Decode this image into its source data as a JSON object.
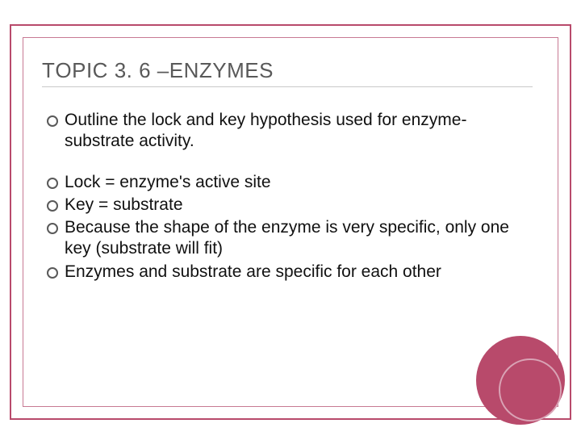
{
  "slide": {
    "title_part1": "T",
    "title_part2": "OPIC",
    "title_number": " 3. 6 –",
    "title_part3": "E",
    "title_part4": "NZYMES",
    "bullets_group1": [
      "Outline the lock and key hypothesis used for enzyme-substrate activity."
    ],
    "bullets_group2": [
      "Lock = enzyme's active site",
      "Key = substrate",
      "Because the shape of the enzyme is very specific, only one key (substrate will fit)",
      "Enzymes and substrate are specific for each other"
    ]
  },
  "style": {
    "frame_color": "#b84a6b",
    "inner_frame_color": "#c77a93",
    "title_color": "#595959",
    "text_color": "#111111",
    "bullet_ring_color": "#595959",
    "circle_fill": "#b84a6b",
    "circle_ring": "#d9a3b5",
    "title_fontsize": 26,
    "body_fontsize": 21
  }
}
